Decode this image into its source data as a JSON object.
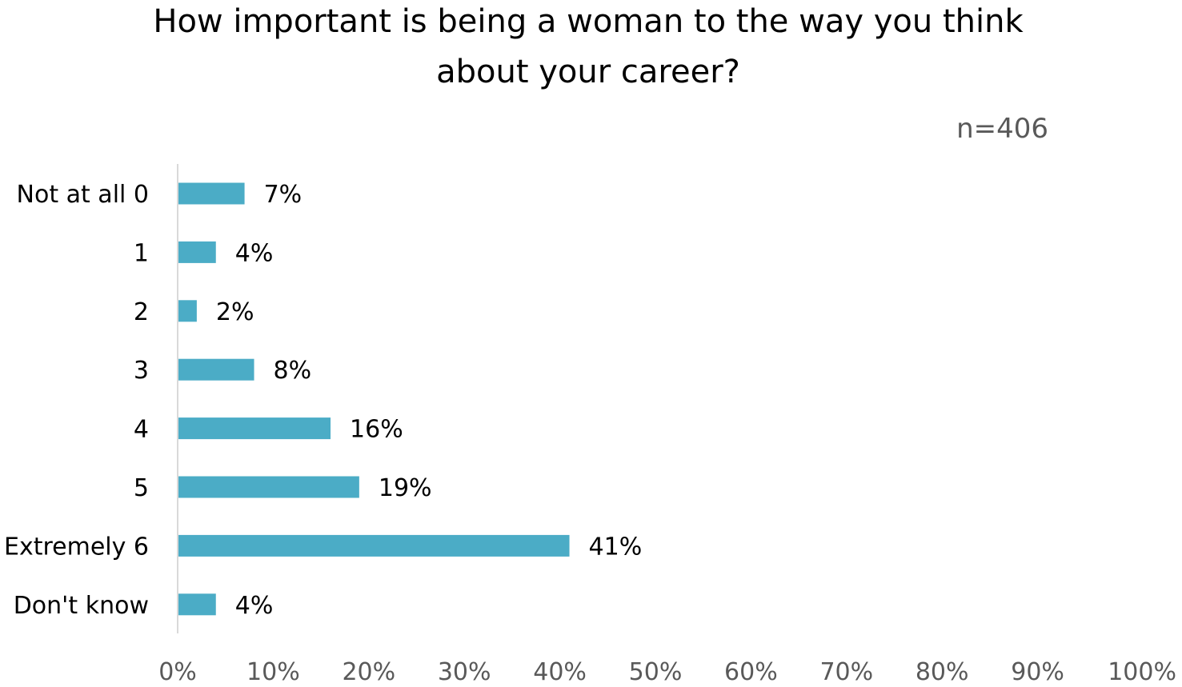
{
  "chart_data": {
    "type": "bar",
    "orientation": "horizontal",
    "title": [
      "How important is being a woman to the way you think",
      "about your career?"
    ],
    "note": "n=406",
    "categories": [
      "Not at all 0",
      "1",
      "2",
      "3",
      "4",
      "5",
      "Extremely 6",
      "Don't know"
    ],
    "values": [
      7,
      4,
      2,
      8,
      16,
      19,
      41,
      4
    ],
    "value_labels": [
      "7%",
      "4%",
      "2%",
      "8%",
      "16%",
      "19%",
      "41%",
      "4%"
    ],
    "xlim": [
      0,
      100
    ],
    "x_ticks": [
      "0%",
      "10%",
      "20%",
      "30%",
      "40%",
      "50%",
      "60%",
      "70%",
      "80%",
      "90%",
      "100%"
    ],
    "grid": false,
    "legend": "none",
    "bar_color": "#4BACC6",
    "axis_color": "#D9D9D9"
  }
}
